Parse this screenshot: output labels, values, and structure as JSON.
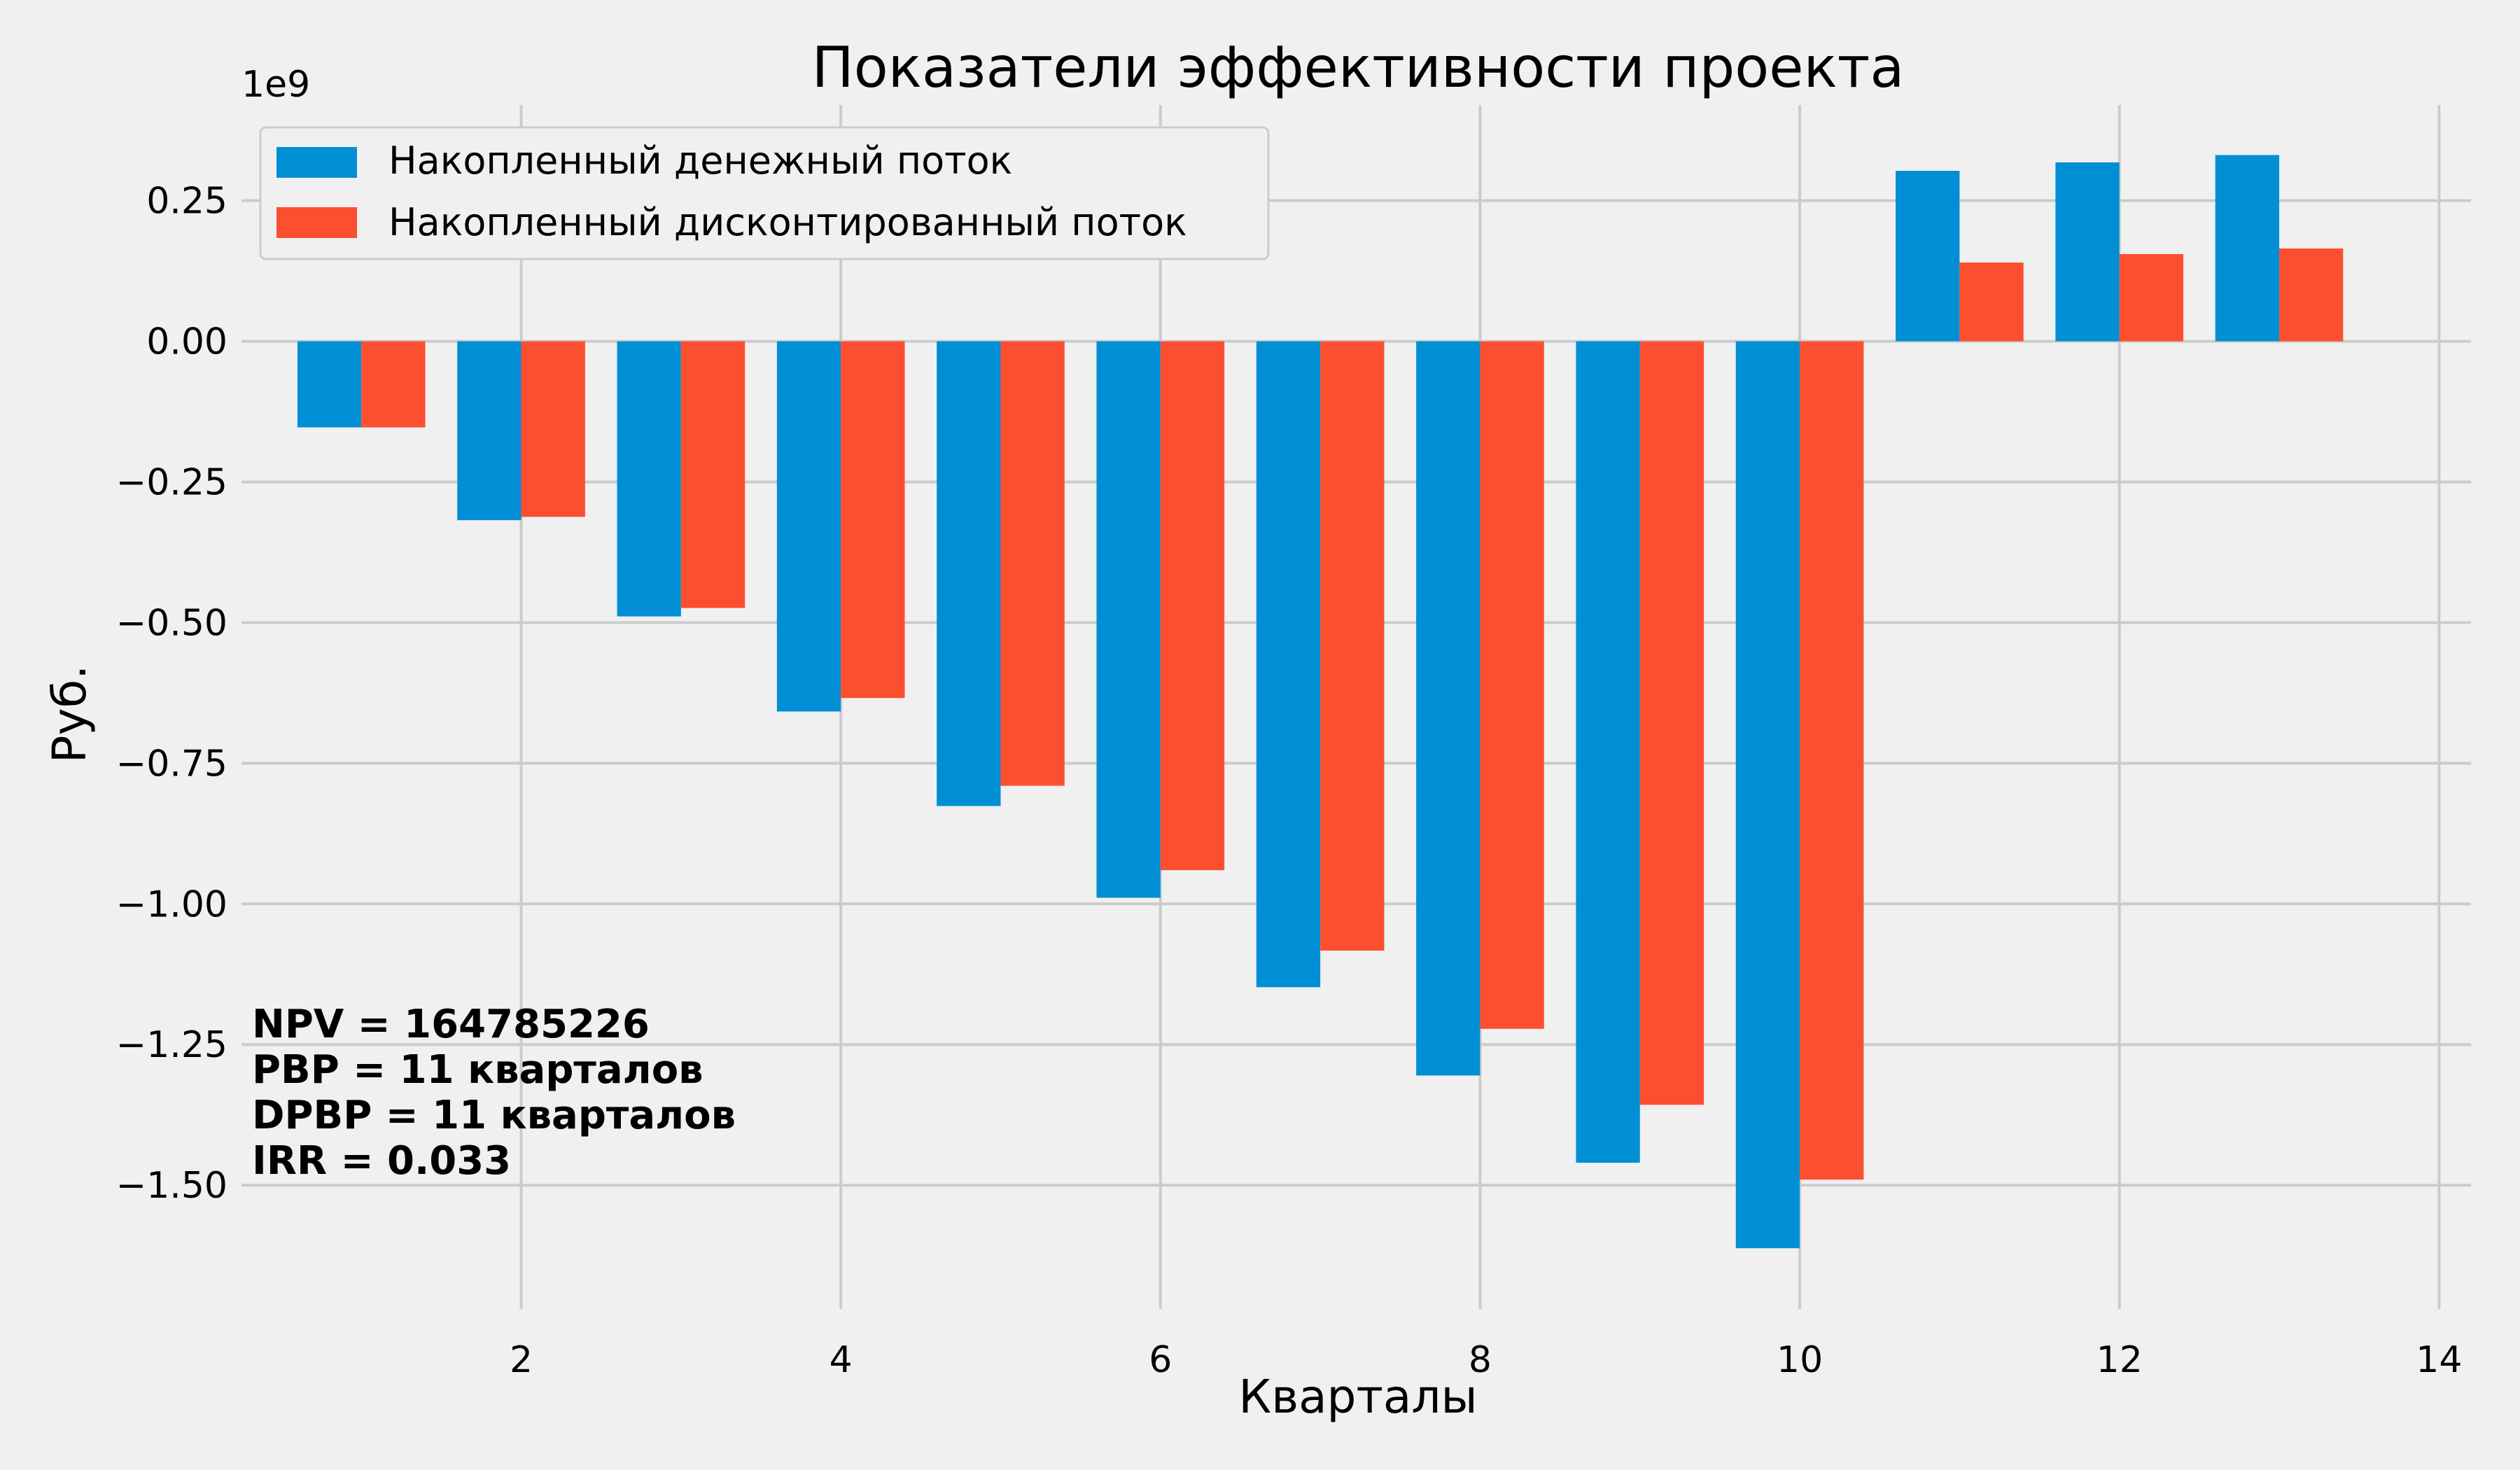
{
  "chart_data": {
    "type": "bar",
    "title": "Показатели эффективности проекта",
    "xlabel": "Кварталы",
    "ylabel": "Руб.",
    "y_scale_label": "1e9",
    "x": [
      1,
      2,
      3,
      4,
      5,
      6,
      7,
      8,
      9,
      10,
      11,
      12,
      13
    ],
    "xlim": [
      0.25,
      14.2
    ],
    "ylim": [
      -1.72,
      0.42
    ],
    "x_ticks": [
      2,
      4,
      6,
      8,
      10,
      12,
      14
    ],
    "x_tick_labels": [
      "2",
      "4",
      "6",
      "8",
      "10",
      "12",
      "14"
    ],
    "y_ticks": [
      0.25,
      0.0,
      -0.25,
      -0.5,
      -0.75,
      -1.0,
      -1.25,
      -1.5
    ],
    "y_tick_labels": [
      "0.25",
      "0.00",
      "−0.25",
      "−0.50",
      "−0.75",
      "−1.00",
      "−1.25",
      "−1.50"
    ],
    "grid": true,
    "legend_position": "top-left",
    "series": [
      {
        "name": "Накопленный денежный поток",
        "color": "#008fd5",
        "values": [
          -0.153,
          -0.318,
          -0.489,
          -0.658,
          -0.826,
          -0.989,
          -1.148,
          -1.305,
          -1.46,
          -1.612,
          0.303,
          0.318,
          0.331
        ]
      },
      {
        "name": "Накопленный дисконтированный поток",
        "color": "#fc4f30",
        "values": [
          -0.153,
          -0.312,
          -0.474,
          -0.634,
          -0.79,
          -0.94,
          -1.083,
          -1.222,
          -1.357,
          -1.49,
          0.14,
          0.155,
          0.165
        ]
      }
    ],
    "annotations": [
      "NPV = 164785226",
      "PBP = 11 кварталов",
      "DPBP = 11 кварталов",
      "IRR = 0.033"
    ]
  }
}
